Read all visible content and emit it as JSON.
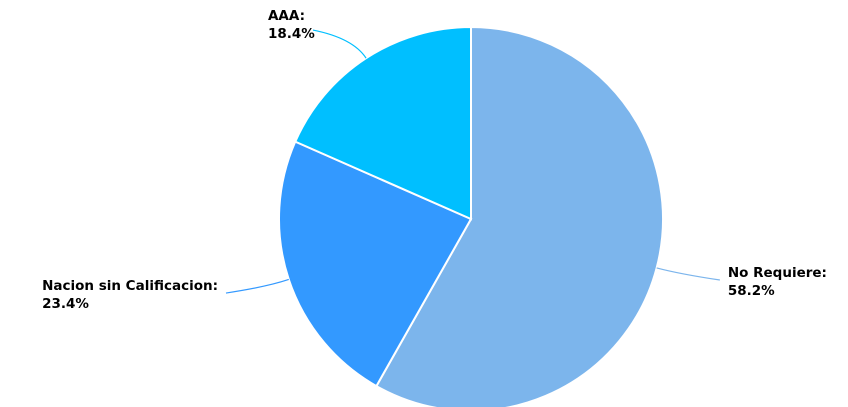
{
  "chart_data": {
    "type": "pie",
    "slices": [
      {
        "label": "No Requiere",
        "value": 58.2,
        "value_text": "58.2%",
        "color": "#7cb5ec"
      },
      {
        "label": "Nacion sin Calificacion",
        "value": 23.4,
        "value_text": "23.4%",
        "color": "#3399ff"
      },
      {
        "label": "AAA",
        "value": 18.4,
        "value_text": "18.4%",
        "color": "#00bfff"
      }
    ],
    "data_labels": "outside-with-connectors",
    "start_angle_deg": 0,
    "direction": "clockwise"
  }
}
